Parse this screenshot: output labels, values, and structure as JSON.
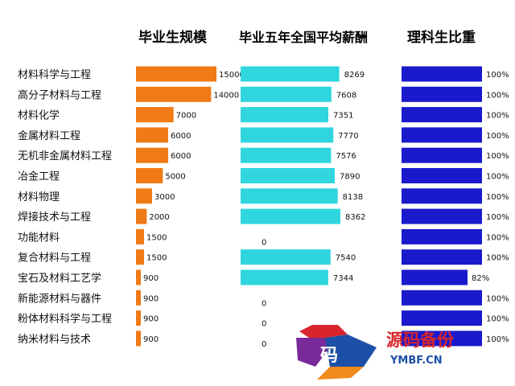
{
  "chart_data": {
    "type": "bar",
    "categories": [
      "材料科学与工程",
      "高分子材料与工程",
      "材料化学",
      "金属材料工程",
      "无机非金属材料工程",
      "冶金工程",
      "材料物理",
      "焊接技术与工程",
      "功能材料",
      "复合材料与工程",
      "宝石及材料工艺学",
      "新能源材料与器件",
      "粉体材料科学与工程",
      "纳米材料与技术"
    ],
    "series": [
      {
        "name": "毕业生规模",
        "color": "#F07A16",
        "values": [
          15000,
          14000,
          7000,
          6000,
          6000,
          5000,
          3000,
          2000,
          1500,
          1500,
          900,
          900,
          900,
          900
        ],
        "labels": [
          "15000",
          "14000",
          "7000",
          "6000",
          "6000",
          "5000",
          "3000",
          "2000",
          "1500",
          "1500",
          "900",
          "900",
          "900",
          "900"
        ]
      },
      {
        "name": "毕业五年全国平均薪酬",
        "color": "#2FD6DE",
        "values": [
          8269,
          7608,
          7351,
          7770,
          7576,
          7890,
          8138,
          8362,
          0,
          7540,
          7344,
          0,
          0,
          0
        ],
        "labels": [
          "8269",
          "7608",
          "7351",
          "7770",
          "7576",
          "7890",
          "8138",
          "8362",
          "0",
          "7540",
          "7344",
          "0",
          "0",
          "0"
        ]
      },
      {
        "name": "理科生比重",
        "color": "#1A1ACC",
        "values": [
          100,
          100,
          100,
          100,
          100,
          100,
          100,
          100,
          100,
          100,
          82,
          100,
          100,
          100
        ],
        "labels": [
          "100%",
          "100%",
          "100%",
          "100%",
          "100%",
          "100%",
          "100%",
          "100%",
          "100%",
          "100%",
          "82%",
          "100%",
          "100%",
          "100%"
        ]
      }
    ],
    "grid": false,
    "legend": "none"
  },
  "watermark": {
    "logo_char": "码",
    "text": "源码备份",
    "url": "YMBF.CN",
    "colors": {
      "red": "#D8252B",
      "blue": "#1E4FA8",
      "orange": "#F08A1C",
      "purple": "#7A2A9A"
    }
  }
}
